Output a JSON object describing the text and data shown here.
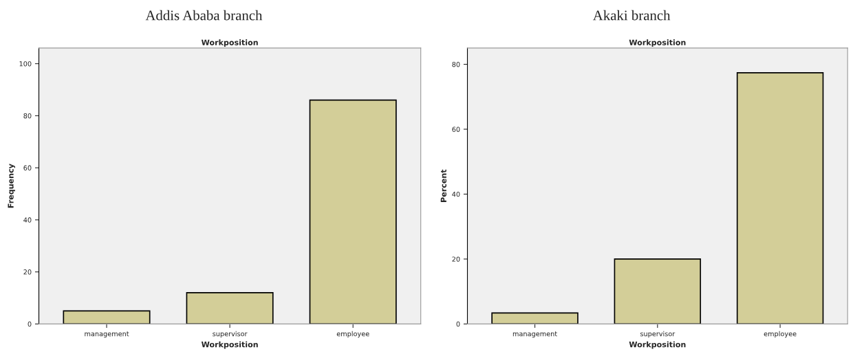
{
  "chart_data": [
    {
      "type": "bar",
      "title": "Addis Ababa branch",
      "subtitle": "Workposition",
      "xlabel": "Workposition",
      "ylabel": "Frequency",
      "categories": [
        "management",
        "supervisor",
        "employee"
      ],
      "values": [
        5,
        12,
        86
      ],
      "color": "#d3ce98",
      "ylim": [
        0,
        106
      ],
      "yticks": [
        0,
        20,
        40,
        60,
        80,
        100
      ],
      "grid": false
    },
    {
      "type": "bar",
      "title": "Akaki branch",
      "subtitle": "Workposition",
      "xlabel": "Workposition",
      "ylabel": "Percent",
      "categories": [
        "management",
        "supervisor",
        "employee"
      ],
      "values": [
        3.4,
        20,
        77.4
      ],
      "color": "#d3ce98",
      "ylim": [
        0,
        85
      ],
      "yticks": [
        0,
        20,
        40,
        60,
        80
      ],
      "grid": false
    }
  ]
}
